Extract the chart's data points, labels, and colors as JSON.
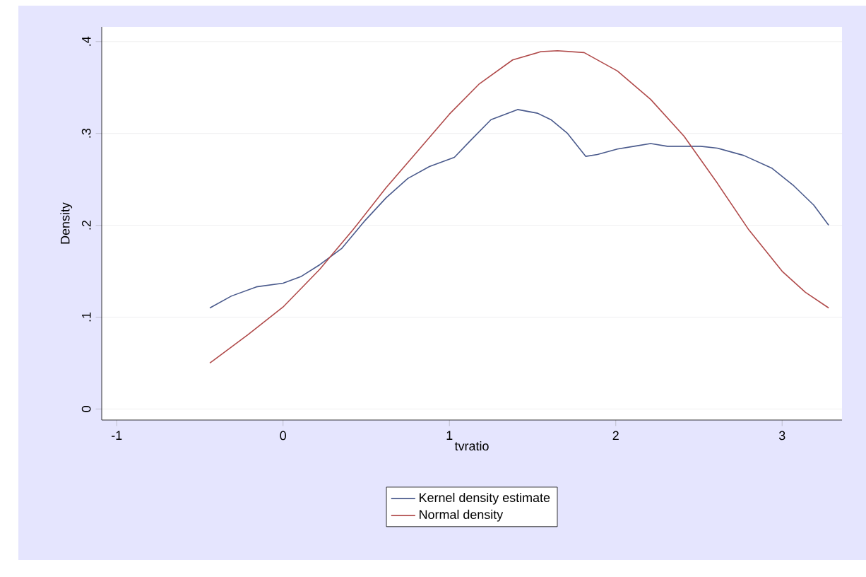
{
  "chart_data": {
    "type": "line",
    "xlabel": "tvratio",
    "ylabel": "Density",
    "xlim": [
      -1.09,
      3.36
    ],
    "ylim": [
      -0.012,
      0.416
    ],
    "xticks": [
      -1,
      0,
      1,
      2,
      3
    ],
    "yticks": [
      {
        "value": 0,
        "label": "0"
      },
      {
        "value": 0.1,
        "label": ".1"
      },
      {
        "value": 0.2,
        "label": ".2"
      },
      {
        "value": 0.3,
        "label": ".3"
      },
      {
        "value": 0.4,
        "label": ".4"
      }
    ],
    "grid": "y",
    "legend": "bottom",
    "marker": "none",
    "line_style": "solid",
    "series": [
      {
        "name": "Kernel density estimate",
        "color": "#4a5a8c",
        "x": [
          -0.44,
          -0.31,
          -0.16,
          0,
          0.106,
          0.22,
          0.354,
          0.487,
          0.62,
          0.75,
          0.88,
          1.03,
          1.12,
          1.25,
          1.41,
          1.53,
          1.61,
          1.71,
          1.82,
          1.89,
          2.01,
          2.11,
          2.21,
          2.31,
          2.51,
          2.61,
          2.77,
          2.94,
          3.07,
          3.19,
          3.28
        ],
        "values": [
          0.11,
          0.123,
          0.133,
          0.137,
          0.144,
          0.157,
          0.175,
          0.204,
          0.23,
          0.251,
          0.264,
          0.274,
          0.291,
          0.315,
          0.326,
          0.322,
          0.315,
          0.3,
          0.275,
          0.277,
          0.283,
          0.286,
          0.289,
          0.286,
          0.286,
          0.284,
          0.276,
          0.262,
          0.243,
          0.222,
          0.2
        ]
      },
      {
        "name": "Normal density",
        "color": "#b04a4a",
        "x": [
          -0.44,
          -0.21,
          0,
          0.22,
          0.42,
          0.62,
          0.82,
          1.0,
          1.18,
          1.38,
          1.55,
          1.65,
          1.81,
          2.01,
          2.21,
          2.41,
          2.61,
          2.8,
          3.0,
          3.14,
          3.28
        ],
        "values": [
          0.05,
          0.081,
          0.111,
          0.152,
          0.195,
          0.241,
          0.283,
          0.321,
          0.354,
          0.38,
          0.389,
          0.39,
          0.388,
          0.368,
          0.337,
          0.297,
          0.246,
          0.195,
          0.15,
          0.127,
          0.11
        ]
      }
    ]
  }
}
